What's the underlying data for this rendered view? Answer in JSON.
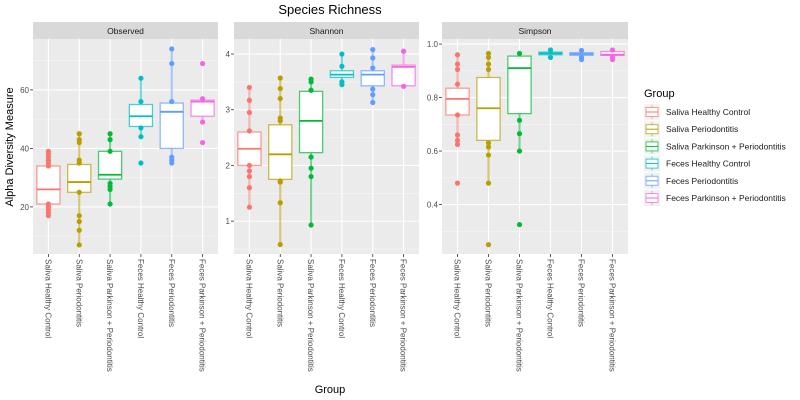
{
  "chart_data": {
    "type": "boxplot",
    "title": "Species Richness",
    "xlabel": "Group",
    "ylabel": "Alpha Diversity Measure",
    "grid": true,
    "legend_position": "right",
    "legend": {
      "title": "Group",
      "entries": [
        {
          "label": "Saliva Healthy Control",
          "color": "#F8766D"
        },
        {
          "label": "Saliva Periodontitis",
          "color": "#B79F00"
        },
        {
          "label": "Saliva Parkinson + Periodontitis",
          "color": "#00BA38"
        },
        {
          "label": "Feces Healthy Control",
          "color": "#00BFC4"
        },
        {
          "label": "Feces Periodontitis",
          "color": "#619CFF"
        },
        {
          "label": "Feces Parkinson + Periodontitis",
          "color": "#F564E3"
        }
      ]
    },
    "categories": [
      "Saliva Healthy Control",
      "Saliva Periodontitis",
      "Saliva Parkinson + Periodontitis",
      "Feces Healthy Control",
      "Feces Periodontitis",
      "Feces Parkinson + Periodontitis"
    ],
    "panels": [
      {
        "title": "Observed",
        "ylim": [
          3.9,
          77.4
        ],
        "yticks": [
          20,
          40,
          60
        ],
        "ytick_labels": [
          "20",
          "40",
          "60"
        ],
        "minor_yticks": [
          10,
          30,
          50,
          70
        ],
        "boxes": [
          {
            "q1": 21,
            "median": 26,
            "q3": 34,
            "whisker_low": 17,
            "whisker_high": 39,
            "points": [
              17,
              18,
              19,
              20,
              21,
              34,
              35,
              36,
              37,
              38,
              39
            ]
          },
          {
            "q1": 25,
            "median": 28.5,
            "q3": 34.5,
            "whisker_low": 7,
            "whisker_high": 45,
            "points": [
              7,
              12,
              15,
              17,
              25,
              35,
              36,
              42,
              43,
              45
            ]
          },
          {
            "q1": 29.5,
            "median": 31,
            "q3": 39,
            "whisker_low": 21,
            "whisker_high": 45,
            "points": [
              21,
              26,
              27,
              28,
              39,
              43,
              45
            ]
          },
          {
            "q1": 47.5,
            "median": 51,
            "q3": 55,
            "whisker_low": 44,
            "whisker_high": 64,
            "points": [
              35,
              44,
              47,
              56,
              64
            ]
          },
          {
            "q1": 40,
            "median": 52.5,
            "q3": 55.5,
            "whisker_low": 35,
            "whisker_high": 74,
            "points": [
              35,
              36,
              37,
              56,
              69,
              74
            ]
          },
          {
            "q1": 51,
            "median": 56,
            "q3": 56.5,
            "whisker_low": 49,
            "whisker_high": 57,
            "points": [
              42,
              49,
              57,
              69
            ]
          }
        ]
      },
      {
        "title": "Shannon",
        "ylim": [
          0.41,
          4.27
        ],
        "yticks": [
          1,
          2,
          3,
          4
        ],
        "ytick_labels": [
          "1",
          "2",
          "3",
          "4"
        ],
        "minor_yticks": [
          0.5,
          1.5,
          2.5,
          3.5
        ],
        "boxes": [
          {
            "q1": 2.0,
            "median": 2.3,
            "q3": 2.6,
            "whisker_low": 1.25,
            "whisker_high": 3.4,
            "points": [
              1.25,
              1.6,
              1.8,
              1.9,
              2.0,
              2.62,
              2.95,
              3.17,
              3.4
            ]
          },
          {
            "q1": 1.75,
            "median": 2.2,
            "q3": 2.73,
            "whisker_low": 0.58,
            "whisker_high": 3.57,
            "points": [
              0.58,
              1.33,
              1.7,
              1.72,
              2.8,
              2.85,
              3.2,
              3.38,
              3.57
            ]
          },
          {
            "q1": 2.23,
            "median": 2.8,
            "q3": 3.33,
            "whisker_low": 0.93,
            "whisker_high": 3.55,
            "points": [
              0.93,
              1.8,
              1.95,
              2.15,
              3.35,
              3.5,
              3.55
            ]
          },
          {
            "q1": 3.58,
            "median": 3.63,
            "q3": 3.7,
            "whisker_low": 3.45,
            "whisker_high": 4.0,
            "points": [
              3.45,
              3.5,
              3.78,
              4.0
            ]
          },
          {
            "q1": 3.43,
            "median": 3.63,
            "q3": 3.7,
            "whisker_low": 3.13,
            "whisker_high": 4.08,
            "points": [
              3.13,
              3.27,
              3.37,
              3.75,
              3.93,
              4.08
            ]
          },
          {
            "q1": 3.43,
            "median": 3.77,
            "q3": 3.8,
            "whisker_low": 3.42,
            "whisker_high": 4.05,
            "points": [
              3.42,
              4.05
            ]
          }
        ]
      },
      {
        "title": "Simpson",
        "ylim": [
          0.215,
          1.019
        ],
        "yticks": [
          0.4,
          0.6,
          0.8,
          1.0
        ],
        "ytick_labels": [
          "0.4",
          "0.6",
          "0.8",
          "1.0"
        ],
        "minor_yticks": [
          0.3,
          0.5,
          0.7,
          0.9
        ],
        "boxes": [
          {
            "q1": 0.735,
            "median": 0.795,
            "q3": 0.835,
            "whisker_low": 0.625,
            "whisker_high": 0.96,
            "points": [
              0.48,
              0.625,
              0.64,
              0.66,
              0.735,
              0.85,
              0.905,
              0.925,
              0.96
            ]
          },
          {
            "q1": 0.64,
            "median": 0.76,
            "q3": 0.875,
            "whisker_low": 0.48,
            "whisker_high": 0.965,
            "points": [
              0.25,
              0.48,
              0.585,
              0.615,
              0.63,
              0.905,
              0.925,
              0.95,
              0.965
            ]
          },
          {
            "q1": 0.74,
            "median": 0.91,
            "q3": 0.955,
            "whisker_low": 0.6,
            "whisker_high": 0.965,
            "points": [
              0.325,
              0.6,
              0.665,
              0.715,
              0.965
            ]
          },
          {
            "q1": 0.96,
            "median": 0.965,
            "q3": 0.97,
            "whisker_low": 0.95,
            "whisker_high": 0.978,
            "points": [
              0.95,
              0.978
            ]
          },
          {
            "q1": 0.958,
            "median": 0.963,
            "q3": 0.968,
            "whisker_low": 0.942,
            "whisker_high": 0.976,
            "points": [
              0.942,
              0.95,
              0.976
            ]
          },
          {
            "q1": 0.958,
            "median": 0.96,
            "q3": 0.972,
            "whisker_low": 0.942,
            "whisker_high": 0.978,
            "points": [
              0.942,
              0.95,
              0.978
            ]
          }
        ]
      }
    ]
  }
}
